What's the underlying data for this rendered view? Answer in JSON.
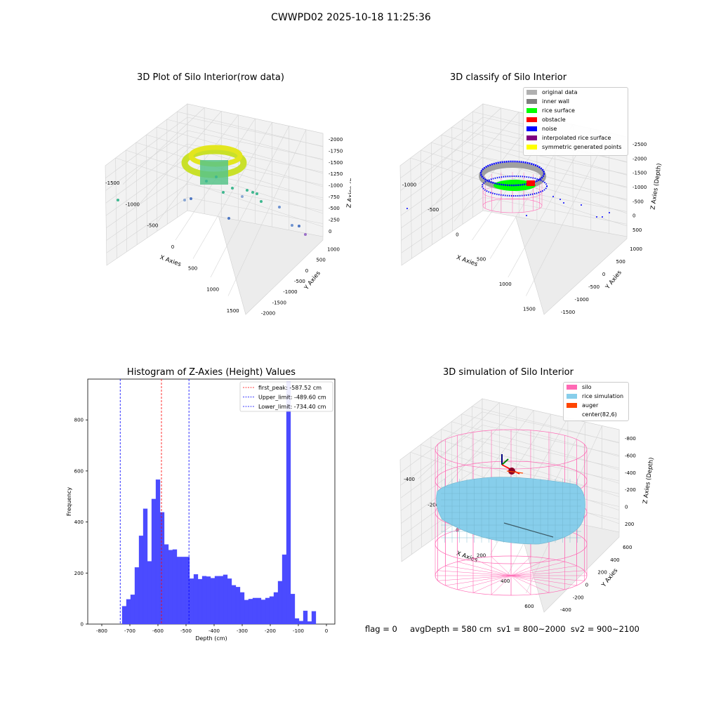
{
  "figure": {
    "suptitle": "CWWPD02 2025-10-18 11:25:36",
    "footer": "flag = 0     avgDepth = 580 cm  sv1 = 800~2000  sv2 = 900~2100"
  },
  "panels": {
    "raw": {
      "title": "3D Plot of Silo Interior(row data)",
      "xlabel": "X Axies",
      "ylabel": "Y Axies",
      "zlabel": "Z Axies (Depth)",
      "xticks": [
        "-1500",
        "-1000",
        "-500",
        "0",
        "500",
        "1000",
        "1500"
      ],
      "yticks": [
        "-2000",
        "-1500",
        "-1000",
        "-500",
        "0",
        "500",
        "1000"
      ],
      "zticks": [
        "0",
        "-250",
        "-500",
        "-750",
        "-1000",
        "-1250",
        "-1500",
        "-1750",
        "-2000"
      ]
    },
    "classify": {
      "title": "3D classify of Silo Interior",
      "xlabel": "X Axies",
      "ylabel": "Y Axies",
      "zlabel": "Z Axies (Depth)",
      "xticks": [
        "-1000",
        "-500",
        "0",
        "500",
        "1000",
        "1500"
      ],
      "yticks": [
        "-1500",
        "-1000",
        "-500",
        "0",
        "500",
        "1000"
      ],
      "zticks": [
        "500",
        "0",
        "-500",
        "-1000",
        "-1500",
        "-2000",
        "-2500"
      ],
      "legend": [
        {
          "label": "original data",
          "color": "#b0b0b0"
        },
        {
          "label": "inner wall",
          "color": "#808080"
        },
        {
          "label": "rice surface",
          "color": "#00ff00"
        },
        {
          "label": "obstacle",
          "color": "#ff0000"
        },
        {
          "label": "noise",
          "color": "#0000ff"
        },
        {
          "label": "interpolated rice surface",
          "color": "#800080"
        },
        {
          "label": "symmetric generated points",
          "color": "#ffff00"
        }
      ]
    },
    "simulation": {
      "title": "3D simulation of Silo Interior",
      "xlabel": "X Axies",
      "ylabel": "Y Axies",
      "zlabel": "Z Axies (Depth)",
      "xticks": [
        "-400",
        "-200",
        "0",
        "200",
        "400",
        "600"
      ],
      "yticks": [
        "-400",
        "-200",
        "0",
        "200",
        "400",
        "600"
      ],
      "zticks": [
        "200",
        "0",
        "-200",
        "-400",
        "-600",
        "-800"
      ],
      "legend": [
        {
          "label": "silo",
          "color": "#ff69b4"
        },
        {
          "label": "rice simulation",
          "color": "#87ceeb"
        },
        {
          "label": "auger",
          "color": "#ff4500"
        },
        {
          "label": "center(82,6)",
          "color": ""
        }
      ]
    }
  },
  "chart_data": {
    "type": "bar",
    "title": "Histogram of Z-Axies (Height) Values",
    "xlabel": "Depth (cm)",
    "ylabel": "Frequency",
    "xlim": [
      -850,
      30
    ],
    "ylim": [
      0,
      960
    ],
    "xticks": [
      -800,
      -700,
      -600,
      -500,
      -400,
      -300,
      -200,
      -100,
      0
    ],
    "yticks": [
      0,
      200,
      400,
      600,
      800
    ],
    "bin_width": 15,
    "bins": [
      {
        "x": -720,
        "v": 70
      },
      {
        "x": -705,
        "v": 97
      },
      {
        "x": -690,
        "v": 115
      },
      {
        "x": -675,
        "v": 222
      },
      {
        "x": -660,
        "v": 346
      },
      {
        "x": -645,
        "v": 452
      },
      {
        "x": -630,
        "v": 246
      },
      {
        "x": -615,
        "v": 490
      },
      {
        "x": -600,
        "v": 566
      },
      {
        "x": -585,
        "v": 438
      },
      {
        "x": -570,
        "v": 312
      },
      {
        "x": -555,
        "v": 290
      },
      {
        "x": -540,
        "v": 292
      },
      {
        "x": -525,
        "v": 263
      },
      {
        "x": -510,
        "v": 263
      },
      {
        "x": -495,
        "v": 263
      },
      {
        "x": -480,
        "v": 178
      },
      {
        "x": -465,
        "v": 195
      },
      {
        "x": -450,
        "v": 176
      },
      {
        "x": -435,
        "v": 188
      },
      {
        "x": -420,
        "v": 186
      },
      {
        "x": -405,
        "v": 180
      },
      {
        "x": -390,
        "v": 188
      },
      {
        "x": -375,
        "v": 188
      },
      {
        "x": -360,
        "v": 193
      },
      {
        "x": -345,
        "v": 178
      },
      {
        "x": -330,
        "v": 152
      },
      {
        "x": -315,
        "v": 145
      },
      {
        "x": -300,
        "v": 124
      },
      {
        "x": -285,
        "v": 94
      },
      {
        "x": -270,
        "v": 98
      },
      {
        "x": -255,
        "v": 102
      },
      {
        "x": -240,
        "v": 102
      },
      {
        "x": -225,
        "v": 95
      },
      {
        "x": -210,
        "v": 102
      },
      {
        "x": -195,
        "v": 108
      },
      {
        "x": -180,
        "v": 124
      },
      {
        "x": -165,
        "v": 168
      },
      {
        "x": -150,
        "v": 272
      },
      {
        "x": -135,
        "v": 950
      },
      {
        "x": -120,
        "v": 118
      },
      {
        "x": -105,
        "v": 22
      },
      {
        "x": -90,
        "v": 12
      },
      {
        "x": -75,
        "v": 52
      },
      {
        "x": -60,
        "v": 10
      },
      {
        "x": -45,
        "v": 50
      }
    ],
    "vlines": [
      {
        "label": "first_peak: -587.52 cm",
        "x": -587.52,
        "color": "#ff0000"
      },
      {
        "label": "Upper_limit: -489.60 cm",
        "x": -489.6,
        "color": "#0000ff"
      },
      {
        "label": "Lower_limit: -734.40 cm",
        "x": -734.4,
        "color": "#0000ff"
      }
    ],
    "bar_color": "#4b4bff",
    "legend_position": "top-right",
    "grid": false
  }
}
